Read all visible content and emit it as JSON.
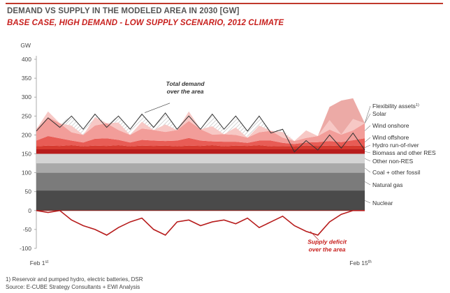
{
  "title": "DEMAND VS SUPPLY IN THE MODELED AREA IN 2030 [GW]",
  "subtitle": "BASE CASE, HIGH DEMAND - LOW SUPPLY SCENARIO, 2012 CLIMATE",
  "footnotes": [
    "1) Reservoir and pumped hydro, electric batteries, DSR",
    "Source: E-CUBE Strategy Consultants + EWI Analysis"
  ],
  "colors": {
    "brand_red": "#c8201e",
    "nuclear": "#4a4a4a",
    "natural_gas": "#7b7b7b",
    "coal_fossil": "#a9a9a9",
    "other_non_res": "#d4d4d4",
    "biomass": "#b71c1c",
    "hydro_ror": "#d63a2f",
    "wind_offshore": "#e85c55",
    "wind_onshore": "#f29d99",
    "solar": "#f7c8c5",
    "flexibility": "#ecaaa6",
    "deficit_line": "#b71c1c",
    "demand_line": "#333333"
  },
  "chart_data": {
    "type": "area",
    "ylabel": "GW",
    "ylim": [
      -100,
      400
    ],
    "yticks": [
      400,
      350,
      300,
      250,
      200,
      150,
      100,
      50,
      0,
      -50,
      -100
    ],
    "x_labels": {
      "start": "Feb 1",
      "start_sup": "st",
      "end": "Feb 15",
      "end_sup": "th"
    },
    "x_range_days": [
      0,
      14
    ],
    "annotations": {
      "demand": [
        "Total demand",
        "over the area"
      ],
      "deficit": [
        "Supply deficit",
        "over the area"
      ]
    },
    "baseload_series": [
      {
        "name": "Nuclear",
        "value": 53
      },
      {
        "name": "Natural gas",
        "value": 47
      },
      {
        "name": "Coal + other fossil",
        "value": 25
      },
      {
        "name": "Other non-RES",
        "value": 25
      }
    ],
    "variable_series": [
      {
        "name": "Biomass and other RES",
        "values": [
          12,
          12,
          12,
          12,
          12,
          12,
          12,
          12,
          12,
          12,
          12,
          12,
          12,
          12,
          12,
          12,
          12,
          12,
          12,
          12,
          12,
          12,
          12,
          12,
          12,
          12,
          12,
          12,
          12
        ]
      },
      {
        "name": "Hydro run-of-river",
        "values": [
          8,
          10,
          9,
          11,
          8,
          10,
          9,
          11,
          8,
          10,
          9,
          10,
          8,
          10,
          9,
          11,
          8,
          10,
          9,
          11,
          8,
          9,
          8,
          10,
          9,
          10,
          9,
          10,
          9
        ]
      },
      {
        "name": "Wind offshore",
        "values": [
          15,
          25,
          20,
          12,
          10,
          18,
          20,
          14,
          10,
          15,
          14,
          12,
          15,
          20,
          14,
          10,
          12,
          10,
          8,
          12,
          15,
          8,
          6,
          8,
          10,
          12,
          10,
          14,
          20
        ]
      },
      {
        "name": "Wind onshore",
        "values": [
          30,
          50,
          40,
          22,
          20,
          35,
          40,
          26,
          20,
          30,
          28,
          24,
          28,
          45,
          30,
          18,
          20,
          18,
          14,
          22,
          26,
          14,
          8,
          12,
          16,
          30,
          20,
          26,
          40
        ]
      },
      {
        "name": "Solar",
        "values": [
          0,
          15,
          0,
          18,
          0,
          22,
          0,
          20,
          0,
          18,
          0,
          20,
          0,
          25,
          0,
          22,
          0,
          20,
          0,
          18,
          0,
          15,
          0,
          20,
          0,
          25,
          0,
          30,
          0
        ]
      },
      {
        "name": "Flexibility assets",
        "label_sup": "1)",
        "values": [
          0,
          0,
          0,
          0,
          0,
          0,
          0,
          0,
          0,
          0,
          0,
          0,
          0,
          0,
          0,
          0,
          0,
          0,
          0,
          0,
          0,
          0,
          0,
          0,
          0,
          35,
          90,
          55,
          0
        ]
      }
    ],
    "total_demand": {
      "name": "Total demand",
      "values": [
        210,
        245,
        220,
        250,
        215,
        255,
        220,
        250,
        215,
        255,
        220,
        258,
        215,
        250,
        215,
        255,
        215,
        250,
        210,
        250,
        205,
        215,
        155,
        185,
        160,
        200,
        165,
        205,
        160
      ]
    },
    "supply_deficit": {
      "name": "Supply deficit",
      "values": [
        0,
        -5,
        0,
        -25,
        -40,
        -50,
        -65,
        -45,
        -30,
        -20,
        -50,
        -65,
        -30,
        -25,
        -40,
        -30,
        -25,
        -35,
        -20,
        -45,
        -30,
        -15,
        -40,
        -55,
        -65,
        -30,
        -10,
        0,
        0
      ]
    }
  }
}
